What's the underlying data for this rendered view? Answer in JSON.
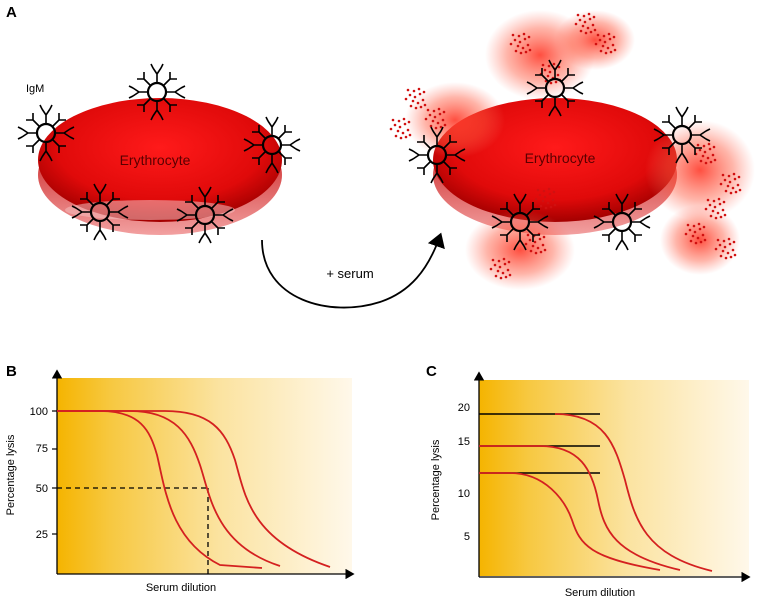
{
  "panel_a": {
    "letter": "A",
    "antibody_label": "IgM",
    "cell_label_before": "Erythrocyte",
    "cell_label_after": "Erythrocyte",
    "arrow_label": "+ serum"
  },
  "panel_b": {
    "letter": "B",
    "ylabel": "Percentage lysis",
    "xlabel": "Serum dilution",
    "yticks": [
      "100",
      "75",
      "50",
      "25"
    ]
  },
  "panel_c": {
    "letter": "C",
    "ylabel": "Percentage lysis",
    "xlabel": "Serum dilution",
    "yticks": [
      "20",
      "15",
      "10",
      "5"
    ]
  },
  "colors": {
    "cell_red": "#e01010",
    "curve_red": "#d42020",
    "gradient_gold": "#f5b800"
  },
  "chart_data": [
    {
      "type": "line",
      "panel": "B",
      "ylabel": "Percentage lysis",
      "xlabel": "Serum dilution",
      "yticks": [
        100,
        75,
        50,
        25
      ],
      "plateaus": [
        100,
        100,
        100
      ],
      "half_lysis_marker": 50
    },
    {
      "type": "line",
      "panel": "C",
      "ylabel": "Percentage lysis",
      "xlabel": "Serum dilution",
      "yticks": [
        20,
        15,
        10,
        5
      ],
      "plateaus": [
        19,
        15.5,
        12
      ]
    }
  ]
}
